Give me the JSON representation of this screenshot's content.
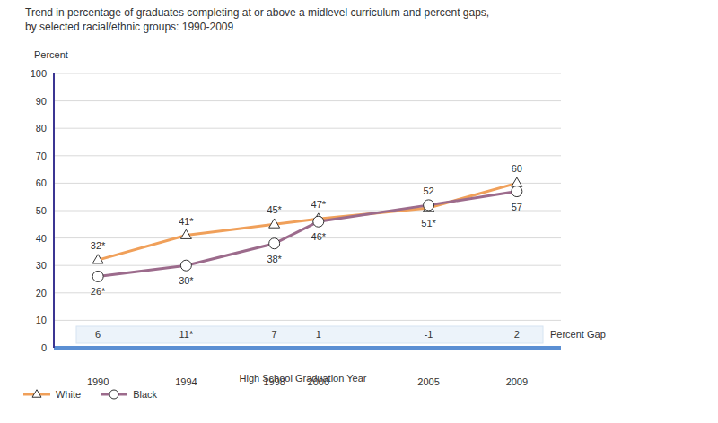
{
  "chart_data": {
    "type": "line",
    "title": "Trend in percentage of graduates completing at or above a midlevel curriculum and percent gaps,",
    "subtitle": "by selected racial/ethnic groups: 1990-2009",
    "y_label": "Percent",
    "x_label": "High School Graduation Year",
    "x": [
      1990,
      1994,
      1998,
      2000,
      2005,
      2009
    ],
    "xlim": [
      1988,
      2011
    ],
    "xticks": [
      1990,
      1994,
      1998,
      2000,
      2005,
      2009
    ],
    "ylim": [
      0,
      100
    ],
    "yticks": [
      0,
      10,
      20,
      30,
      40,
      50,
      60,
      70,
      80,
      90,
      100
    ],
    "grid": true,
    "data_labels": true,
    "legend": "bottom left",
    "series": [
      {
        "name": "White",
        "color": "#f0a05a",
        "marker": "triangle",
        "values": [
          32,
          41,
          45,
          47,
          51,
          60
        ],
        "value_labels": [
          "32*",
          "41*",
          "45*",
          "47*",
          "51*",
          "60"
        ]
      },
      {
        "name": "Black",
        "color": "#9c6b8c",
        "marker": "circle",
        "values": [
          26,
          30,
          38,
          46,
          52,
          57
        ],
        "value_labels": [
          "26*",
          "30*",
          "38*",
          "46*",
          "52",
          "57"
        ]
      }
    ],
    "annotations": {
      "label": "Percent Gap",
      "values": [
        6,
        11,
        7,
        1,
        -1,
        2
      ],
      "value_labels": [
        "6",
        "11*",
        "7",
        "1",
        "-1",
        "2"
      ]
    }
  }
}
